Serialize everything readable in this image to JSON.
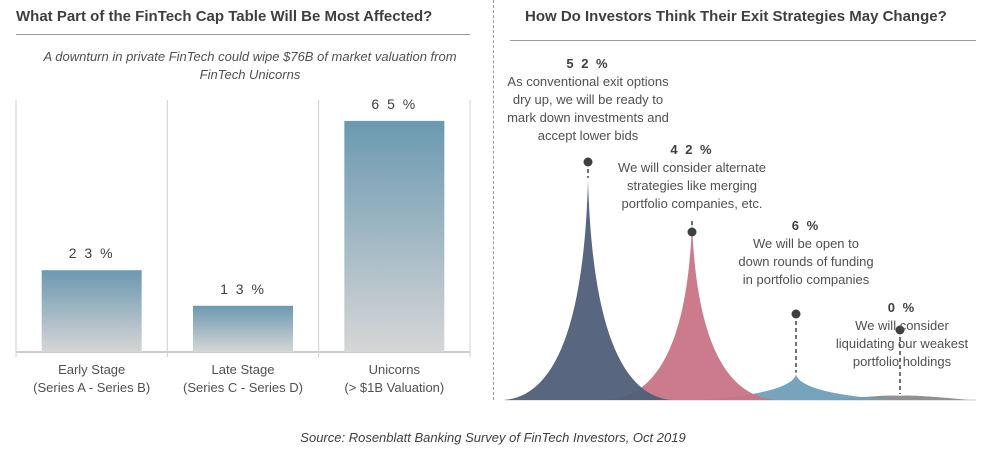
{
  "left_panel": {
    "title": "What Part of the FinTech Cap Table Will Be Most Affected?",
    "subtitle": "A downturn in private FinTech could wipe $76B of market valuation from FinTech Unicorns"
  },
  "right_panel": {
    "title": "How Do Investors Think Their Exit Strategies May Change?"
  },
  "source": "Source: Rosenblatt Banking Survey of FinTech Investors, Oct 2019",
  "colors": {
    "bar_top": "#6b99b0",
    "bar_bottom": "#d6d6d6",
    "peak_1": "#4f5f78",
    "peak_2": "#c87485",
    "peak_3": "#6f9fb8",
    "peak_4": "#8a8a8a"
  },
  "chart_data": [
    {
      "type": "bar",
      "categories": [
        "Early Stage (Series A - Series B)",
        "Late Stage (Series C - Series D)",
        "Unicorns (> $1B Valuation)"
      ],
      "category_lines": [
        [
          "Early Stage",
          "(Series A - Series B)"
        ],
        [
          "Late Stage",
          "(Series C - Series D)"
        ],
        [
          "Unicorns",
          "(> $1B Valuation)"
        ]
      ],
      "values": [
        23,
        13,
        65
      ],
      "value_labels": [
        "2 3 %",
        "1 3 %",
        "6 5 %"
      ],
      "ylim": [
        0,
        72
      ],
      "grid": false
    },
    {
      "type": "area",
      "categories": [
        "As conventional exit options dry up, we will be ready to mark down investments and accept lower bids",
        "We will consider alternate strategies like merging portfolio companies, etc.",
        "We will be open to down rounds of funding in portfolio companies",
        "We will consider liquidating our weakest portfolio holdings"
      ],
      "values": [
        52,
        42,
        6,
        0
      ],
      "value_labels": [
        "5 2 %",
        "4 2 %",
        "6 %",
        "0 %"
      ],
      "annotation_lines": [
        [
          "As conventional exit options",
          "dry up, we will be ready to",
          "mark down investments and",
          "accept lower bids"
        ],
        [
          "We will consider alternate",
          "strategies like merging",
          "portfolio companies, etc."
        ],
        [
          "We will be open to",
          "down rounds of funding",
          "in portfolio companies"
        ],
        [
          "We will consider",
          "liquidating our weakest",
          "portfolio holdings"
        ]
      ],
      "ylim": [
        0,
        60
      ],
      "grid": false
    }
  ]
}
